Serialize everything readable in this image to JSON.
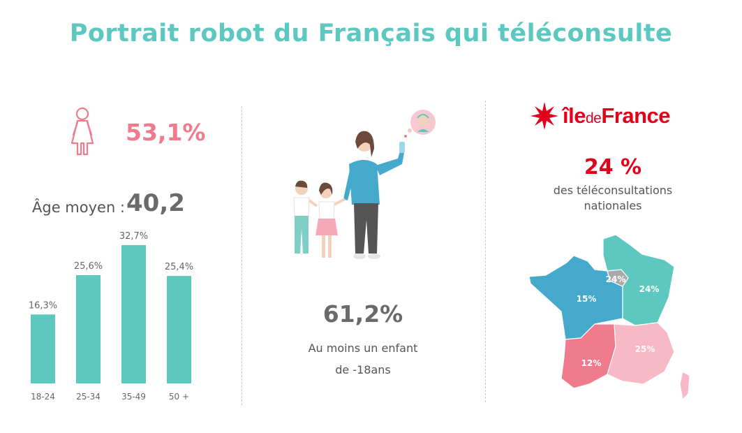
{
  "title": "Portrait robot du Français qui téléconsulte",
  "female_share": "53,1%",
  "age": {
    "label": "Âge moyen :",
    "value": "40,2"
  },
  "kids": {
    "value": "61,2%",
    "caption_line1": "Au moins un enfant",
    "caption_line2": "de -18ans"
  },
  "idf": {
    "logo_ile": "île",
    "logo_de": "de",
    "logo_france": "France",
    "share": "24 %",
    "caption_line1": "des téléconsultations",
    "caption_line2": "nationales"
  },
  "map_labels": {
    "north_paris": "24%",
    "east": "24%",
    "west": "15%",
    "southwest": "12%",
    "southeast": "25%"
  },
  "colors": {
    "teal": "#5cc8bf",
    "pink": "#ef7b8d",
    "red": "#e3001b",
    "blue": "#45a9cc",
    "grey": "#a9a9a9"
  },
  "chart_data": {
    "type": "bar",
    "categories": [
      "18-24",
      "25-34",
      "35-49",
      "50 +"
    ],
    "values": [
      16.3,
      25.6,
      32.7,
      25.4
    ],
    "value_labels": [
      "16,3%",
      "25,6%",
      "32,7%",
      "25,4%"
    ],
    "ylim": [
      0,
      40
    ],
    "grid": false,
    "color": "#5cc8bf"
  }
}
